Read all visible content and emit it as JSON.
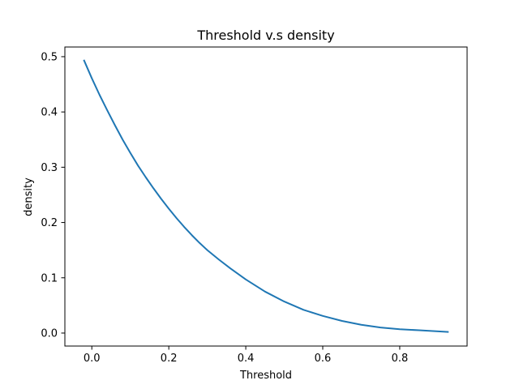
{
  "chart_data": {
    "type": "line",
    "title": "Threshold v.s density",
    "xlabel": "Threshold",
    "ylabel": "density",
    "xlim": [
      -0.07,
      0.975
    ],
    "ylim": [
      -0.0235,
      0.5175
    ],
    "xticks": [
      0.0,
      0.2,
      0.4,
      0.6,
      0.8
    ],
    "xtick_labels": [
      "0.0",
      "0.2",
      "0.4",
      "0.6",
      "0.8"
    ],
    "yticks": [
      0.0,
      0.1,
      0.2,
      0.3,
      0.4,
      0.5
    ],
    "ytick_labels": [
      "0.0",
      "0.1",
      "0.2",
      "0.3",
      "0.4",
      "0.5"
    ],
    "grid": false,
    "series": [
      {
        "color": "#1f77b4",
        "x": [
          -0.02,
          0.0,
          0.02,
          0.04,
          0.06,
          0.08,
          0.1,
          0.12,
          0.14,
          0.16,
          0.18,
          0.2,
          0.22,
          0.24,
          0.26,
          0.28,
          0.3,
          0.33,
          0.36,
          0.4,
          0.45,
          0.5,
          0.55,
          0.6,
          0.65,
          0.7,
          0.75,
          0.8,
          0.85,
          0.9,
          0.925
        ],
        "y": [
          0.493,
          0.461,
          0.431,
          0.403,
          0.376,
          0.35,
          0.326,
          0.303,
          0.282,
          0.262,
          0.243,
          0.225,
          0.208,
          0.192,
          0.177,
          0.163,
          0.15,
          0.133,
          0.117,
          0.097,
          0.075,
          0.057,
          0.042,
          0.031,
          0.022,
          0.015,
          0.01,
          0.007,
          0.005,
          0.003,
          0.002
        ]
      }
    ]
  }
}
